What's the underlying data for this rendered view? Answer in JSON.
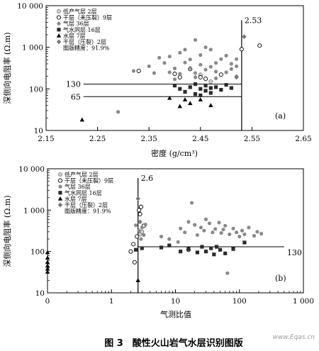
{
  "figure": {
    "caption": "图 3　酸性火山岩气水层识别图版",
    "watermark": "www.Eqas.cn"
  },
  "chart_data": [
    {
      "type": "scatter",
      "panel_label": "(a)",
      "xlabel": "密度 (g/cm³)",
      "ylabel": "深侧向电阻率 (Ω.m)",
      "xlim": [
        2.15,
        2.65
      ],
      "ylim": [
        10,
        10000
      ],
      "yscale": "log",
      "x_ticks": [
        "2.15",
        "2.25",
        "2.35",
        "2.45",
        "2.55",
        "2.65"
      ],
      "y_ticks": [
        "10",
        "100",
        "1 000",
        "10 000"
      ],
      "legend": {
        "placement": "top-left",
        "entries": [
          "低产气层 2层",
          "干层（未压裂）9层",
          "气层 36层",
          "气水同层 16层",
          "水层 7层",
          "干层（压裂）2层"
        ],
        "note": "图版精度：91.9%"
      },
      "reference_lines": [
        {
          "axis": "y",
          "value": 130,
          "label": "130"
        },
        {
          "axis": "y",
          "value": 65,
          "label": "65"
        },
        {
          "axis": "x",
          "value": 2.53,
          "label": "2.53"
        }
      ],
      "series": [
        {
          "name": "低产气层 2层",
          "marker": "circle-gray",
          "points": [
            [
              2.45,
              220
            ],
            [
              2.47,
              150
            ]
          ]
        },
        {
          "name": "干层（未压裂）9层",
          "marker": "circle-open",
          "points": [
            [
              2.33,
              270
            ],
            [
              2.4,
              230
            ],
            [
              2.41,
              190
            ],
            [
              2.43,
              300
            ],
            [
              2.45,
              190
            ],
            [
              2.46,
              175
            ],
            [
              2.49,
              220
            ],
            [
              2.53,
              900
            ],
            [
              2.565,
              1100
            ]
          ]
        },
        {
          "name": "气层 36层",
          "marker": "dot-gray",
          "points": [
            [
              2.29,
              28
            ],
            [
              2.32,
              270
            ],
            [
              2.35,
              350
            ],
            [
              2.37,
              560
            ],
            [
              2.38,
              420
            ],
            [
              2.39,
              250
            ],
            [
              2.39,
              600
            ],
            [
              2.4,
              310
            ],
            [
              2.41,
              230
            ],
            [
              2.41,
              740
            ],
            [
              2.42,
              430
            ],
            [
              2.42,
              880
            ],
            [
              2.43,
              320
            ],
            [
              2.43,
              510
            ],
            [
              2.44,
              240
            ],
            [
              2.44,
              1500
            ],
            [
              2.45,
              380
            ],
            [
              2.45,
              650
            ],
            [
              2.46,
              290
            ],
            [
              2.46,
              1000
            ],
            [
              2.47,
              340
            ],
            [
              2.47,
              880
            ],
            [
              2.48,
              260
            ],
            [
              2.48,
              420
            ],
            [
              2.49,
              520
            ],
            [
              2.5,
              250
            ],
            [
              2.5,
              630
            ],
            [
              2.51,
              300
            ],
            [
              2.51,
              400
            ],
            [
              2.52,
              350
            ],
            [
              2.52,
              520
            ],
            [
              2.52,
              200
            ],
            [
              2.36,
              240
            ],
            [
              2.4,
              170
            ],
            [
              2.44,
              190
            ],
            [
              2.48,
              180
            ]
          ]
        },
        {
          "name": "气水同层 16层",
          "marker": "square",
          "points": [
            [
              2.4,
              120
            ],
            [
              2.41,
              100
            ],
            [
              2.42,
              85
            ],
            [
              2.43,
              110
            ],
            [
              2.44,
              75
            ],
            [
              2.44,
              130
            ],
            [
              2.45,
              100
            ],
            [
              2.45,
              70
            ],
            [
              2.46,
              90
            ],
            [
              2.46,
              120
            ],
            [
              2.47,
              105
            ],
            [
              2.47,
              80
            ],
            [
              2.48,
              110
            ],
            [
              2.49,
              95
            ],
            [
              2.5,
              125
            ],
            [
              2.51,
              105
            ]
          ]
        },
        {
          "name": "水层 7层",
          "marker": "triangle",
          "points": [
            [
              2.22,
              18
            ],
            [
              2.39,
              60
            ],
            [
              2.41,
              38
            ],
            [
              2.42,
              55
            ],
            [
              2.43,
              45
            ],
            [
              2.45,
              55
            ],
            [
              2.47,
              40
            ]
          ]
        },
        {
          "name": "干层（压裂）2层",
          "marker": "diamond",
          "points": [
            [
              2.52,
              190
            ],
            [
              2.535,
              1800
            ]
          ]
        }
      ]
    },
    {
      "type": "scatter",
      "panel_label": "(b)",
      "xlabel": "气测比值",
      "ylabel": "深侧向电阻率 (Ω.m)",
      "xscale": "log",
      "yscale": "log",
      "xlim": [
        0.1,
        1000
      ],
      "ylim": [
        10,
        10000
      ],
      "x_ticks": [
        "0",
        "1",
        "10",
        "100",
        "1 000"
      ],
      "y_ticks": [
        "10",
        "100",
        "1 000",
        "10 000"
      ],
      "legend": {
        "placement": "top-left",
        "entries": [
          "低产气层 2层",
          "干层（未压裂）9层",
          "气层 36层",
          "气水同层 16层",
          "水层 7层",
          "干层（压裂）2层"
        ],
        "note": "图版精度：91.9%"
      },
      "reference_lines": [
        {
          "axis": "y",
          "value": 130,
          "label": "130"
        },
        {
          "axis": "x",
          "value": 2.6,
          "label": "2.6"
        }
      ],
      "series": [
        {
          "name": "低产气层 2层",
          "marker": "circle-gray",
          "points": [
            [
              2.8,
              260
            ],
            [
              3.0,
              300
            ]
          ]
        },
        {
          "name": "干层（未压裂）9层",
          "marker": "circle-open",
          "points": [
            [
              2.0,
              100
            ],
            [
              2.2,
              150
            ],
            [
              2.3,
              55
            ],
            [
              2.5,
              230
            ],
            [
              2.7,
              1000
            ],
            [
              2.8,
              800
            ],
            [
              2.9,
              1200
            ],
            [
              16,
              110
            ],
            [
              3.2,
              420
            ]
          ]
        },
        {
          "name": "气层 36层",
          "marker": "dot-gray",
          "points": [
            [
              2.4,
              430
            ],
            [
              2.7,
              320
            ],
            [
              2.9,
              200
            ],
            [
              3.0,
              380
            ],
            [
              3.2,
              250
            ],
            [
              3.4,
              450
            ],
            [
              6,
              230
            ],
            [
              8,
              200
            ],
            [
              11,
              170
            ],
            [
              12,
              360
            ],
            [
              14,
              290
            ],
            [
              16,
              520
            ],
            [
              18,
              1500
            ],
            [
              20,
              440
            ],
            [
              22,
              250
            ],
            [
              25,
              380
            ],
            [
              28,
              320
            ],
            [
              30,
              600
            ],
            [
              34,
              480
            ],
            [
              38,
              290
            ],
            [
              42,
              350
            ],
            [
              48,
              500
            ],
            [
              52,
              280
            ],
            [
              56,
              340
            ],
            [
              60,
              420
            ],
            [
              65,
              30
            ],
            [
              70,
              260
            ],
            [
              80,
              360
            ],
            [
              90,
              290
            ],
            [
              100,
              230
            ],
            [
              110,
              320
            ],
            [
              120,
              260
            ],
            [
              140,
              380
            ],
            [
              170,
              240
            ],
            [
              190,
              300
            ],
            [
              220,
              270
            ]
          ]
        },
        {
          "name": "气水同层 16层",
          "marker": "square",
          "points": [
            [
              2.4,
              110
            ],
            [
              3.0,
              120
            ],
            [
              6,
              125
            ],
            [
              8,
              140
            ],
            [
              12,
              100
            ],
            [
              16,
              115
            ],
            [
              22,
              95
            ],
            [
              26,
              130
            ],
            [
              30,
              100
            ],
            [
              36,
              120
            ],
            [
              40,
              85
            ],
            [
              44,
              130
            ],
            [
              50,
              110
            ],
            [
              60,
              90
            ],
            [
              80,
              115
            ],
            [
              120,
              165
            ]
          ]
        },
        {
          "name": "水层 7层",
          "marker": "triangle",
          "points": [
            [
              0.1,
              95
            ],
            [
              0.1,
              70
            ],
            [
              0.1,
              55
            ],
            [
              0.1,
              45
            ],
            [
              0.1,
              38
            ],
            [
              0.1,
              32
            ],
            [
              2.6,
              20
            ]
          ]
        },
        {
          "name": "干层（压裂）2层",
          "marker": "diamond",
          "points": [
            [
              2.6,
              1900
            ],
            [
              2.8,
              520
            ]
          ]
        }
      ]
    }
  ]
}
